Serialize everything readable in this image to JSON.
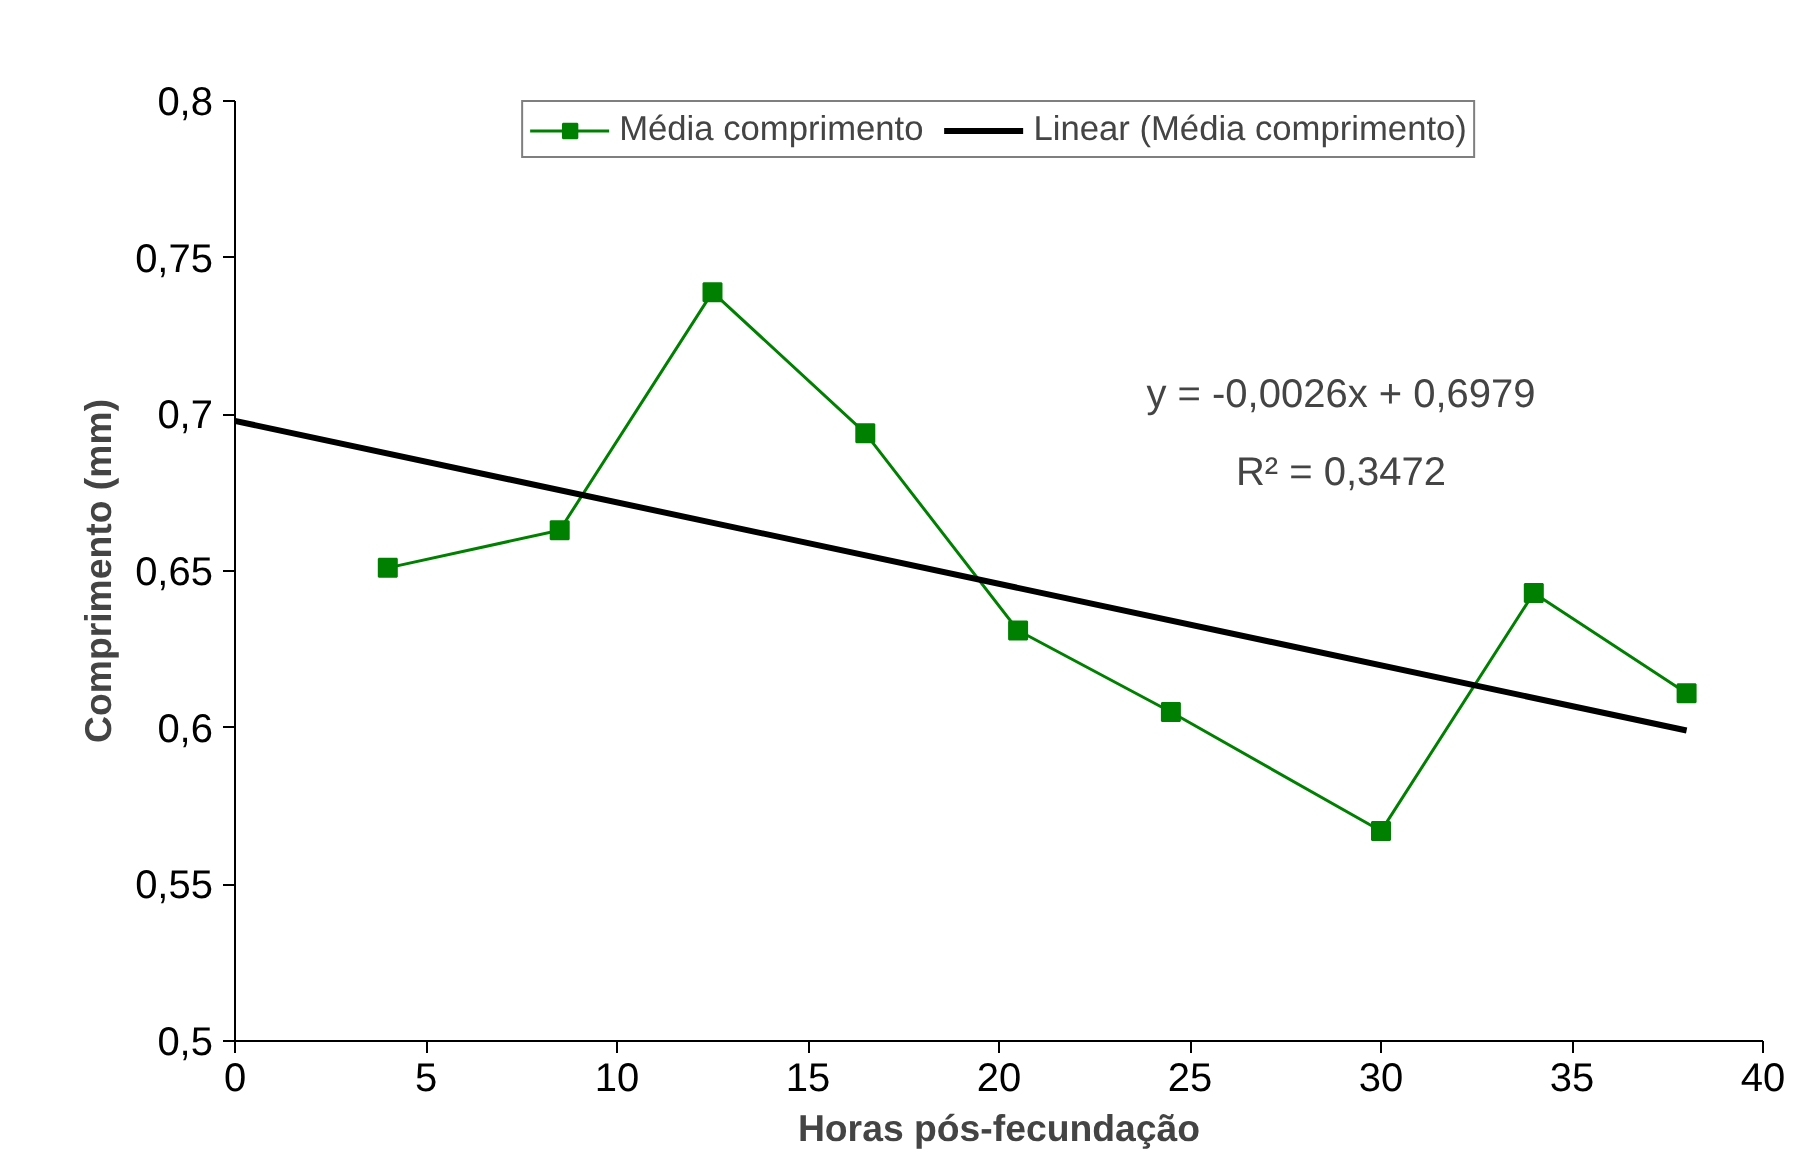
{
  "chart_data": {
    "type": "line",
    "xlabel": "Horas pós-fecundação",
    "ylabel": "Comprimento (mm)",
    "xlim": [
      0,
      40
    ],
    "xticks": [
      0,
      5,
      10,
      15,
      20,
      25,
      30,
      35,
      40
    ],
    "ylim": [
      0.5,
      0.8
    ],
    "yticks": [
      {
        "value": 0.5,
        "label": "0,5"
      },
      {
        "value": 0.55,
        "label": "0,55"
      },
      {
        "value": 0.6,
        "label": "0,6"
      },
      {
        "value": 0.65,
        "label": "0,65"
      },
      {
        "value": 0.7,
        "label": "0,7"
      },
      {
        "value": 0.75,
        "label": "0,75"
      },
      {
        "value": 0.8,
        "label": "0,8"
      }
    ],
    "x": [
      4,
      8.5,
      12.5,
      16.5,
      20.5,
      24.5,
      30,
      34,
      38
    ],
    "series": [
      {
        "name": "Média comprimento",
        "color": "#008000",
        "marker": "square",
        "values": [
          0.651,
          0.663,
          0.739,
          0.694,
          0.631,
          0.605,
          0.567,
          0.643,
          0.611
        ]
      },
      {
        "name": "Linear (Média comprimento)",
        "color": "#000000",
        "marker": "none",
        "x": [
          0,
          38
        ],
        "values": [
          0.6979,
          0.5991
        ]
      }
    ],
    "annotations": [
      "y = -0,0026x + 0,6979",
      "R² = 0,3472"
    ],
    "grid": false,
    "legend": "top"
  }
}
